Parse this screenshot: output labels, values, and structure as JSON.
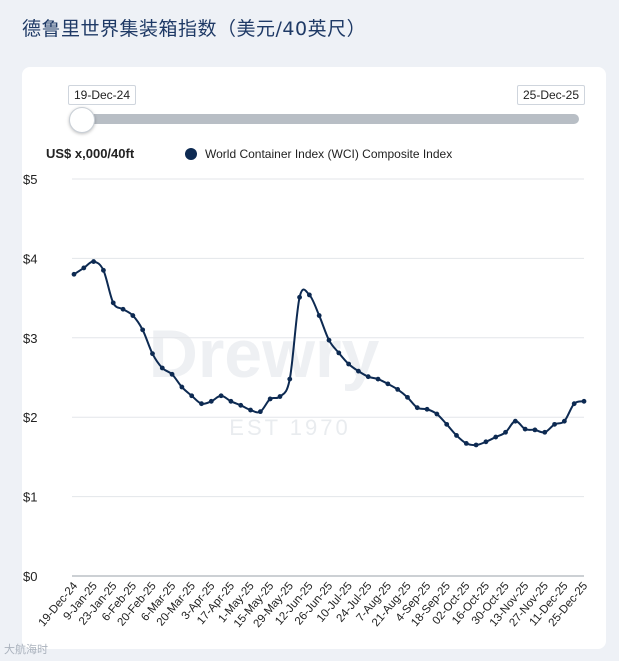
{
  "page": {
    "title": "德鲁里世界集装箱指数（美元/40英尺）"
  },
  "slider": {
    "start_label": "19-Dec-24",
    "end_label": "25-Dec-25"
  },
  "watermark": {
    "brand": "Drewry",
    "sub": "EST 1970"
  },
  "footer": {
    "mark": "大航海时"
  },
  "colors": {
    "line": "#0d2a52",
    "grid": "#e3e6ea",
    "title": "#1f3a66"
  },
  "chart_data": {
    "type": "line",
    "title": "德鲁里世界集装箱指数（美元/40英尺）",
    "ylabel": "US$ x,000/40ft",
    "xlabel": "",
    "ylim": [
      0,
      5
    ],
    "yticks": [
      0,
      1,
      2,
      3,
      4,
      5
    ],
    "ytick_labels": [
      "$0",
      "$1",
      "$2",
      "$3",
      "$4",
      "$5"
    ],
    "grid": true,
    "legend": "top",
    "x_tick_labels": [
      "19-Dec-24",
      "9-Jan-25",
      "23-Jan-25",
      "6-Feb-25",
      "20-Feb-25",
      "6-Mar-25",
      "20-Mar-25",
      "3-Apr-25",
      "17-Apr-25",
      "1-May-25",
      "15-May-25",
      "29-May-25",
      "12-Jun-25",
      "26-Jun-25",
      "10-Jul-25",
      "24-Jul-25",
      "7-Aug-25",
      "21-Aug-25",
      "4-Sep-25",
      "18-Sep-25",
      "02-Oct-25",
      "16-Oct-25",
      "30-Oct-25",
      "13-Nov-25",
      "27-Nov-25",
      "11-Dec-25",
      "25-Dec-25"
    ],
    "series": [
      {
        "name": "World Container Index (WCI) Composite Index",
        "values": [
          3.8,
          3.88,
          3.96,
          3.85,
          3.44,
          3.36,
          3.28,
          3.1,
          2.8,
          2.62,
          2.54,
          2.38,
          2.27,
          2.17,
          2.2,
          2.27,
          2.2,
          2.15,
          2.09,
          2.07,
          2.23,
          2.26,
          2.48,
          3.51,
          3.54,
          3.28,
          2.97,
          2.81,
          2.67,
          2.58,
          2.51,
          2.48,
          2.42,
          2.35,
          2.25,
          2.12,
          2.1,
          2.04,
          1.91,
          1.77,
          1.67,
          1.65,
          1.69,
          1.75,
          1.81,
          1.95,
          1.85,
          1.84,
          1.81,
          1.91,
          1.95,
          2.17,
          2.2
        ]
      }
    ]
  }
}
